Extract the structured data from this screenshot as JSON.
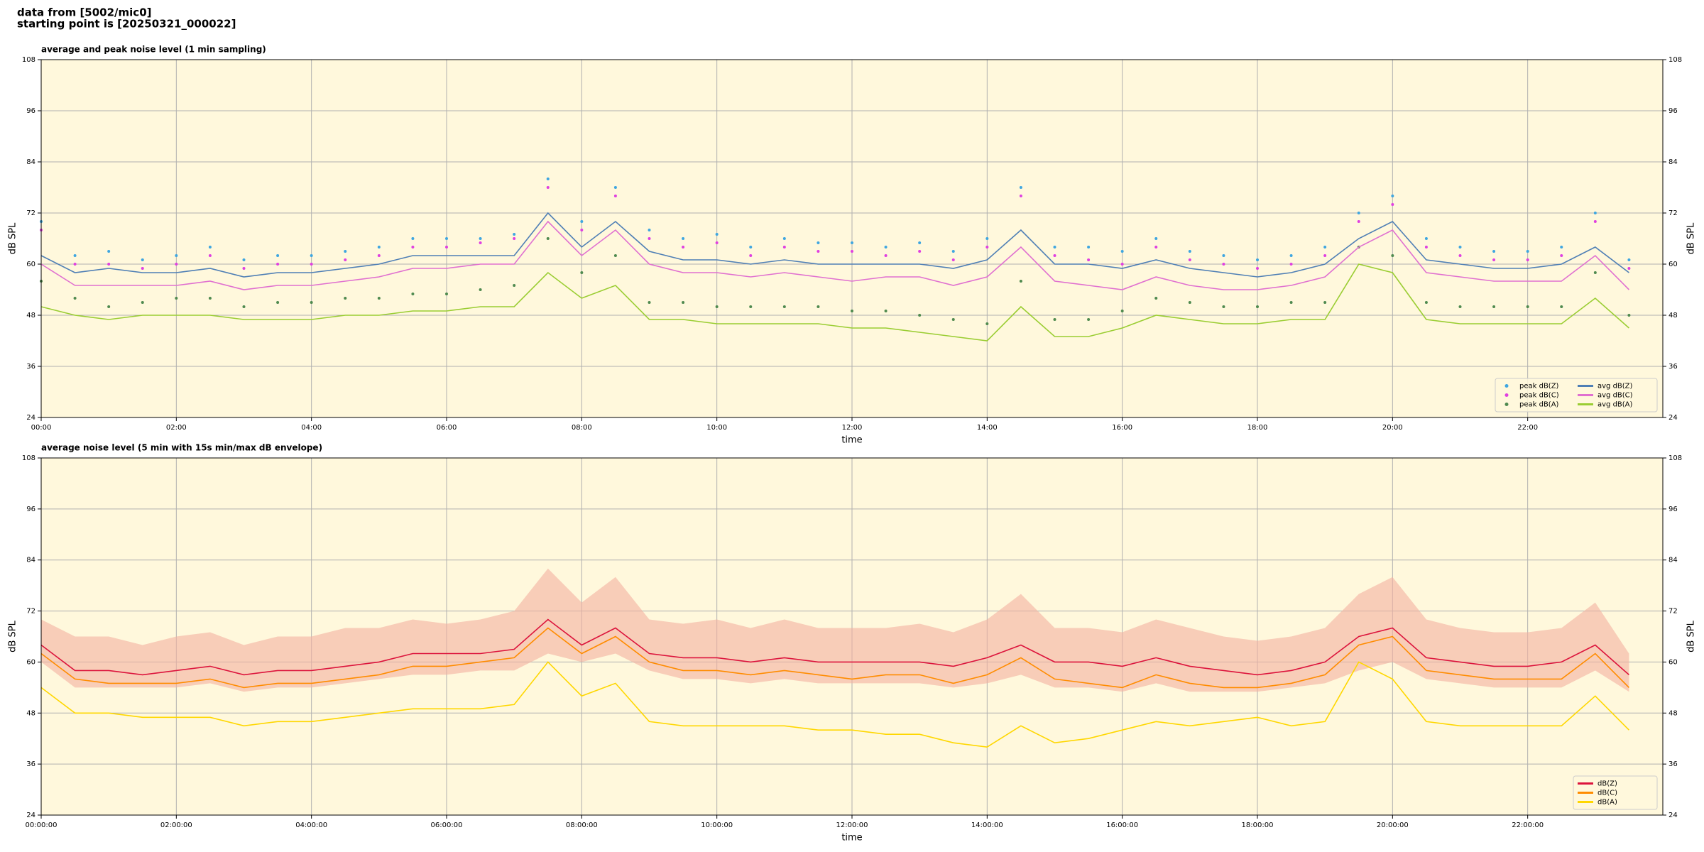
{
  "suptitle": [
    "data from [5002/mic0]",
    "starting point is [20250321_000022]"
  ],
  "chart_data": [
    {
      "type": "line",
      "title": "average and peak noise level (1 min sampling)",
      "xlabel": "time",
      "ylabel": "dB SPL",
      "background": "#fff8dc",
      "grid": true,
      "legend": "lower right",
      "legend_ncol": 2,
      "xlim": [
        0,
        24
      ],
      "ylim": [
        24,
        108
      ],
      "yticks": [
        24,
        36,
        48,
        60,
        72,
        84,
        96,
        108
      ],
      "xticks": [
        {
          "value": 0,
          "label": "00:00"
        },
        {
          "value": 2,
          "label": "02:00"
        },
        {
          "value": 4,
          "label": "04:00"
        },
        {
          "value": 6,
          "label": "06:00"
        },
        {
          "value": 8,
          "label": "08:00"
        },
        {
          "value": 10,
          "label": "10:00"
        },
        {
          "value": 12,
          "label": "12:00"
        },
        {
          "value": 14,
          "label": "14:00"
        },
        {
          "value": 16,
          "label": "16:00"
        },
        {
          "value": 18,
          "label": "18:00"
        },
        {
          "value": 20,
          "label": "20:00"
        },
        {
          "value": 22,
          "label": "22:00"
        }
      ],
      "x": [
        0,
        0.5,
        1,
        1.5,
        2,
        2.5,
        3,
        3.5,
        4,
        4.5,
        5,
        5.5,
        6,
        6.5,
        7,
        7.5,
        8,
        8.5,
        9,
        9.5,
        10,
        10.5,
        11,
        11.5,
        12,
        12.5,
        13,
        13.5,
        14,
        14.5,
        15,
        15.5,
        16,
        16.5,
        17,
        17.5,
        18,
        18.5,
        19,
        19.5,
        20,
        20.5,
        21,
        21.5,
        22,
        22.5,
        23,
        23.5
      ],
      "series": [
        {
          "name": "peak dB(Z)",
          "kind": "scatter",
          "color": "#3fa6e0",
          "values": [
            70,
            62,
            63,
            61,
            62,
            64,
            61,
            62,
            62,
            63,
            64,
            66,
            66,
            66,
            67,
            80,
            70,
            78,
            68,
            66,
            67,
            64,
            66,
            65,
            65,
            64,
            65,
            63,
            66,
            78,
            64,
            64,
            63,
            66,
            63,
            62,
            61,
            62,
            64,
            72,
            76,
            66,
            64,
            63,
            63,
            64,
            72,
            61
          ]
        },
        {
          "name": "peak dB(C)",
          "kind": "scatter",
          "color": "#e040e0",
          "values": [
            68,
            60,
            60,
            59,
            60,
            62,
            59,
            60,
            60,
            61,
            62,
            64,
            64,
            65,
            66,
            78,
            68,
            76,
            66,
            64,
            65,
            62,
            64,
            63,
            63,
            62,
            63,
            61,
            64,
            76,
            62,
            61,
            60,
            64,
            61,
            60,
            59,
            60,
            62,
            70,
            74,
            64,
            62,
            61,
            61,
            62,
            70,
            59
          ]
        },
        {
          "name": "peak dB(A)",
          "kind": "scatter",
          "color": "#4f8a4f",
          "values": [
            56,
            52,
            50,
            51,
            52,
            52,
            50,
            51,
            51,
            52,
            52,
            53,
            53,
            54,
            55,
            66,
            58,
            62,
            51,
            51,
            50,
            50,
            50,
            50,
            49,
            49,
            48,
            47,
            46,
            56,
            47,
            47,
            49,
            52,
            51,
            50,
            50,
            51,
            51,
            64,
            62,
            51,
            50,
            50,
            50,
            50,
            58,
            48
          ]
        },
        {
          "name": "avg dB(Z)",
          "kind": "line",
          "color": "#4f7fb5",
          "values": [
            62,
            58,
            59,
            58,
            58,
            59,
            57,
            58,
            58,
            59,
            60,
            62,
            62,
            62,
            62,
            72,
            64,
            70,
            63,
            61,
            61,
            60,
            61,
            60,
            60,
            60,
            60,
            59,
            61,
            68,
            60,
            60,
            59,
            61,
            59,
            58,
            57,
            58,
            60,
            66,
            70,
            61,
            60,
            59,
            59,
            60,
            64,
            58
          ]
        },
        {
          "name": "avg dB(C)",
          "kind": "line",
          "color": "#e070d0",
          "values": [
            60,
            55,
            55,
            55,
            55,
            56,
            54,
            55,
            55,
            56,
            57,
            59,
            59,
            60,
            60,
            70,
            62,
            68,
            60,
            58,
            58,
            57,
            58,
            57,
            56,
            57,
            57,
            55,
            57,
            64,
            56,
            55,
            54,
            57,
            55,
            54,
            54,
            55,
            57,
            64,
            68,
            58,
            57,
            56,
            56,
            56,
            62,
            54
          ]
        },
        {
          "name": "avg dB(A)",
          "kind": "line",
          "color": "#9acd32",
          "values": [
            50,
            48,
            47,
            48,
            48,
            48,
            47,
            47,
            47,
            48,
            48,
            49,
            49,
            50,
            50,
            58,
            52,
            55,
            47,
            47,
            46,
            46,
            46,
            46,
            45,
            45,
            44,
            43,
            42,
            50,
            43,
            43,
            45,
            48,
            47,
            46,
            46,
            47,
            47,
            60,
            58,
            47,
            46,
            46,
            46,
            46,
            52,
            45
          ]
        }
      ]
    },
    {
      "type": "line",
      "title": "average noise level (5 min with 15s min/max dB envelope)",
      "xlabel": "time",
      "ylabel": "dB SPL",
      "background": "#fff8dc",
      "grid": true,
      "legend": "lower right",
      "legend_ncol": 1,
      "xlim": [
        0,
        24
      ],
      "ylim": [
        24,
        108
      ],
      "yticks": [
        24,
        36,
        48,
        60,
        72,
        84,
        96,
        108
      ],
      "xticks": [
        {
          "value": 0,
          "label": "00:00:00"
        },
        {
          "value": 2,
          "label": "02:00:00"
        },
        {
          "value": 4,
          "label": "04:00:00"
        },
        {
          "value": 6,
          "label": "06:00:00"
        },
        {
          "value": 8,
          "label": "08:00:00"
        },
        {
          "value": 10,
          "label": "10:00:00"
        },
        {
          "value": 12,
          "label": "12:00:00"
        },
        {
          "value": 14,
          "label": "14:00:00"
        },
        {
          "value": 16,
          "label": "16:00:00"
        },
        {
          "value": 18,
          "label": "18:00:00"
        },
        {
          "value": 20,
          "label": "20:00:00"
        },
        {
          "value": 22,
          "label": "22:00:00"
        }
      ],
      "x": [
        0,
        0.5,
        1,
        1.5,
        2,
        2.5,
        3,
        3.5,
        4,
        4.5,
        5,
        5.5,
        6,
        6.5,
        7,
        7.5,
        8,
        8.5,
        9,
        9.5,
        10,
        10.5,
        11,
        11.5,
        12,
        12.5,
        13,
        13.5,
        14,
        14.5,
        15,
        15.5,
        16,
        16.5,
        17,
        17.5,
        18,
        18.5,
        19,
        19.5,
        20,
        20.5,
        21,
        21.5,
        22,
        22.5,
        23,
        23.5
      ],
      "envelope": {
        "color": "#f4b0a0",
        "max": [
          70,
          66,
          66,
          64,
          66,
          67,
          64,
          66,
          66,
          68,
          68,
          70,
          69,
          70,
          72,
          82,
          74,
          80,
          70,
          69,
          70,
          68,
          70,
          68,
          68,
          68,
          69,
          67,
          70,
          76,
          68,
          68,
          67,
          70,
          68,
          66,
          65,
          66,
          68,
          76,
          80,
          70,
          68,
          67,
          67,
          68,
          74,
          62
        ],
        "min": [
          60,
          54,
          54,
          54,
          54,
          55,
          53,
          54,
          54,
          55,
          56,
          57,
          57,
          58,
          58,
          62,
          60,
          62,
          58,
          56,
          56,
          55,
          56,
          55,
          55,
          55,
          55,
          54,
          55,
          57,
          54,
          54,
          53,
          55,
          53,
          53,
          53,
          54,
          55,
          58,
          60,
          56,
          55,
          54,
          54,
          54,
          58,
          53
        ]
      },
      "series": [
        {
          "name": "dB(Z)",
          "kind": "line",
          "color": "#dc143c",
          "values": [
            64,
            58,
            58,
            57,
            58,
            59,
            57,
            58,
            58,
            59,
            60,
            62,
            62,
            62,
            63,
            70,
            64,
            68,
            62,
            61,
            61,
            60,
            61,
            60,
            60,
            60,
            60,
            59,
            61,
            64,
            60,
            60,
            59,
            61,
            59,
            58,
            57,
            58,
            60,
            66,
            68,
            61,
            60,
            59,
            59,
            60,
            64,
            57
          ]
        },
        {
          "name": "dB(C)",
          "kind": "line",
          "color": "#ff8c00",
          "values": [
            62,
            56,
            55,
            55,
            55,
            56,
            54,
            55,
            55,
            56,
            57,
            59,
            59,
            60,
            61,
            68,
            62,
            66,
            60,
            58,
            58,
            57,
            58,
            57,
            56,
            57,
            57,
            55,
            57,
            61,
            56,
            55,
            54,
            57,
            55,
            54,
            54,
            55,
            57,
            64,
            66,
            58,
            57,
            56,
            56,
            56,
            62,
            54
          ]
        },
        {
          "name": "dB(A)",
          "kind": "line",
          "color": "#ffd700",
          "values": [
            54,
            48,
            48,
            47,
            47,
            47,
            45,
            46,
            46,
            47,
            48,
            49,
            49,
            49,
            50,
            60,
            52,
            55,
            46,
            45,
            45,
            45,
            45,
            44,
            44,
            43,
            43,
            41,
            40,
            45,
            41,
            42,
            44,
            46,
            45,
            46,
            47,
            45,
            46,
            60,
            56,
            46,
            45,
            45,
            45,
            45,
            52,
            44
          ]
        }
      ]
    }
  ]
}
